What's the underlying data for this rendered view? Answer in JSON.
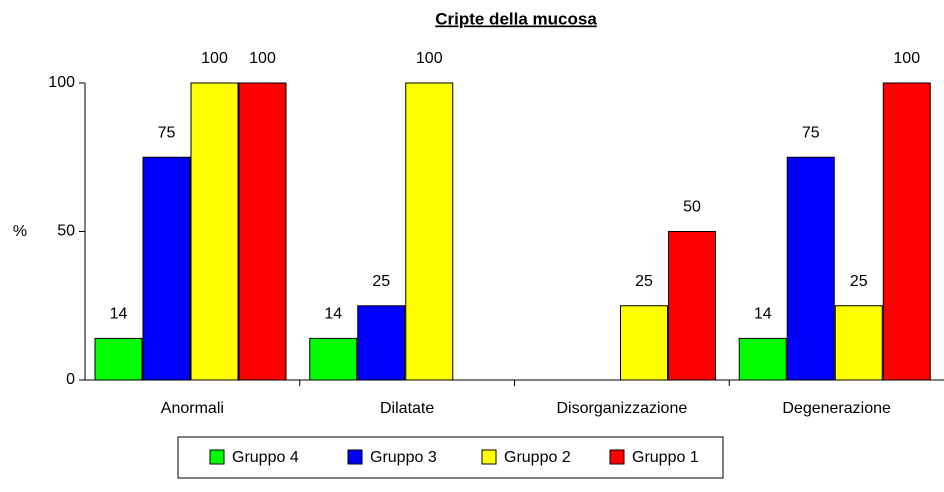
{
  "chart_data": {
    "type": "bar",
    "title": "Cripte della mucosa",
    "y_label": "%",
    "categories": [
      "Anormali",
      "Dilatate",
      "Disorganizzazione",
      "Degenerazione"
    ],
    "series": [
      {
        "name": "Gruppo 4",
        "color": "#00ff00",
        "values": [
          14,
          14,
          null,
          14
        ]
      },
      {
        "name": "Gruppo 3",
        "color": "#0000ff",
        "values": [
          75,
          25,
          null,
          75
        ]
      },
      {
        "name": "Gruppo 2",
        "color": "#ffff00",
        "values": [
          100,
          100,
          25,
          25
        ]
      },
      {
        "name": "Gruppo 1",
        "color": "#ff0000",
        "values": [
          100,
          null,
          50,
          100
        ]
      }
    ],
    "ylim": [
      0,
      100
    ],
    "yticks": [
      0,
      50,
      100
    ],
    "grid": false,
    "legend": "bottom"
  }
}
